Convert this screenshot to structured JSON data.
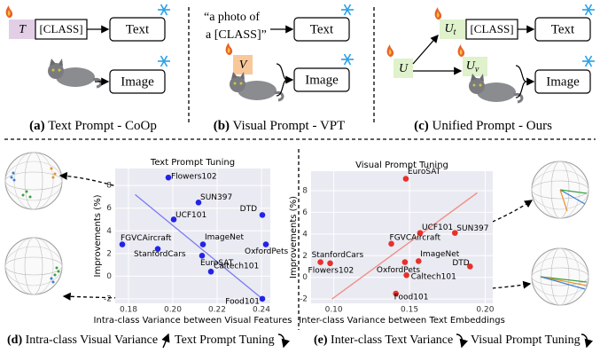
{
  "panels": [
    {
      "prompt": "T",
      "class_token": "[CLASS]",
      "text_encoder": "Text",
      "image_encoder": "Image",
      "caption": {
        "tag": "(a)",
        "text": "Text Prompt - CoOp"
      }
    },
    {
      "prompt_line1": "“a photo of",
      "prompt_line2": "a [CLASS]”",
      "text_encoder": "Text",
      "visual_prompt": "V",
      "image_encoder": "Image",
      "caption": {
        "tag": "(b)",
        "text": "Visual Prompt - VPT"
      }
    },
    {
      "unified_prompt": "U",
      "text_prompt": {
        "base": "U",
        "sub": "t"
      },
      "class_token": "[CLASS]",
      "visual_prompt": {
        "base": "U",
        "sub": "v"
      },
      "text_encoder": "Text",
      "image_encoder": "Image",
      "caption": {
        "tag": "(c)",
        "text": "Unified Prompt - Ours"
      }
    }
  ],
  "bottom_captions": [
    {
      "tag": "(d)",
      "left": "Intra-class Visual Variance",
      "right": "Text Prompt Tuning"
    },
    {
      "tag": "(e)",
      "left": "Inter-class Text Variance",
      "right": "Visual Prompt Tuning"
    }
  ],
  "chart_data": [
    {
      "type": "scatter",
      "title": "Text Prompt Tuning",
      "x_label": "Intra-class Variance between Visual Features",
      "y_label": "Improvements (%)",
      "point_labels": [
        "Flowers102",
        "SUN397",
        "UCF101",
        "DTD",
        "FGVCAircraft",
        "StanfordCars",
        "ImageNet",
        "OxfordPets",
        "EuroSAT",
        "Caltech101",
        "Food101"
      ],
      "x": [
        0.198,
        0.2116,
        0.2004,
        0.2404,
        0.1772,
        0.1932,
        0.2136,
        0.242,
        0.2132,
        0.2172,
        0.2404
      ],
      "values": [
        8.7,
        6.5,
        5.0,
        5.4,
        2.8,
        2.4,
        2.8,
        2.8,
        1.8,
        0.4,
        -2.0
      ],
      "color": "#2323e8",
      "trend_line": {
        "x": [
          0.183,
          0.2404
        ],
        "values": [
          7.2,
          -2.0
        ],
        "color": "#7b7bf0"
      },
      "xlim": [
        0.174,
        0.244
      ],
      "ylim": [
        -2.4,
        9.5
      ],
      "xticks": [
        0.18,
        {
          "value": 0.2,
          "label": "0.20"
        },
        0.22,
        0.24
      ],
      "yticks": [
        -2,
        0,
        2,
        4,
        6,
        8
      ],
      "grid": true
    },
    {
      "type": "scatter",
      "title": "Visual Prompt Tuning",
      "x_label": "Inter-class Variance between Text Embeddings",
      "y_label": "Improvements (%)",
      "point_labels": [
        "EuroSAT",
        "UCF101",
        "SUN397",
        "FGVCAircraft",
        "StanfordCars",
        "Flowers102",
        "OxfordPets",
        "ImageNet",
        "DTD",
        "Caltech101",
        "Food101"
      ],
      "x": [
        0.1476,
        0.157,
        0.18,
        0.138,
        0.0912,
        0.0976,
        0.147,
        0.156,
        0.19,
        0.148,
        0.141
      ],
      "values": [
        9.1,
        4.1,
        4.1,
        3.1,
        1.4,
        1.3,
        1.4,
        1.5,
        1.0,
        0.2,
        -1.5
      ],
      "color": "#e8312a",
      "trend_line": {
        "x": [
          0.0988,
          0.1947
        ],
        "values": [
          -2.0,
          7.8
        ],
        "color": "#f08a80"
      },
      "xlim": [
        0.085,
        0.205
      ],
      "ylim": [
        -2.4,
        9.8
      ],
      "xticks": [
        {
          "value": 0.1,
          "label": "0.10"
        },
        0.15,
        {
          "value": 0.2,
          "label": "0.20"
        }
      ],
      "yticks": [
        -2,
        0,
        2,
        4,
        6,
        8
      ],
      "grid": true
    }
  ]
}
